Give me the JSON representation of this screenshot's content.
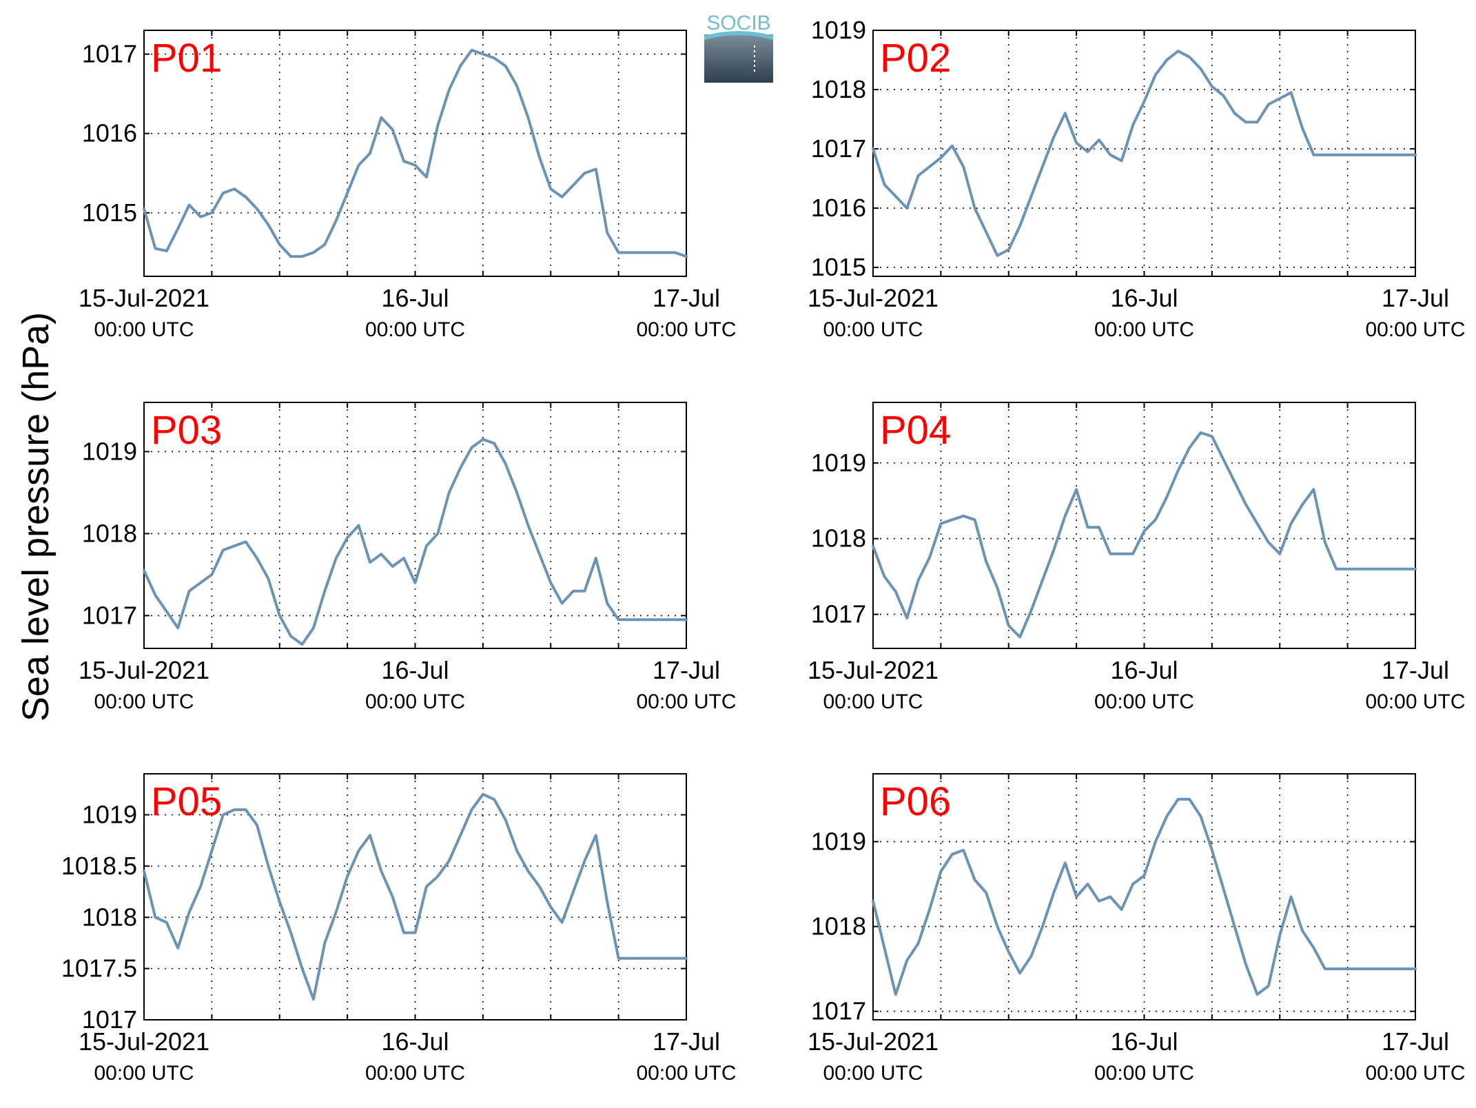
{
  "figure": {
    "ylabel": "Sea level pressure (hPa)",
    "logo_text": "SOCIB",
    "logo_icon": "socib-logo",
    "colors": {
      "series": "#6a93b6",
      "panel_label": "#ff0000",
      "logo_top": "#6cbfd2",
      "logo_mid": "#7c8c99",
      "logo_bottom": "#2f3f4e"
    }
  },
  "chart_data": [
    {
      "type": "line",
      "panel_label": "P01",
      "x_range": [
        "2021-07-15 00:00",
        "2021-07-17 00:00"
      ],
      "x_ticks": [
        {
          "main": "15-Jul-2021",
          "sub": "00:00 UTC"
        },
        {
          "main": "16-Jul",
          "sub": "00:00 UTC"
        },
        {
          "main": "17-Jul",
          "sub": "00:00 UTC"
        }
      ],
      "grid": true,
      "ylim": [
        1014.2,
        1017.3
      ],
      "yticks": [
        "1015",
        "1016",
        "1017"
      ],
      "x_hours": [
        0,
        1,
        2,
        3,
        4,
        5,
        6,
        7,
        8,
        9,
        10,
        11,
        12,
        13,
        14,
        15,
        16,
        17,
        18,
        19,
        20,
        21,
        22,
        23,
        24,
        25,
        26,
        27,
        28,
        29,
        30,
        31,
        32,
        33,
        34,
        35,
        36,
        37,
        38,
        39,
        40,
        41,
        42,
        43,
        44,
        45,
        46,
        47,
        48
      ],
      "values": [
        1015.05,
        1014.55,
        1014.52,
        1014.8,
        1015.1,
        1014.95,
        1015.0,
        1015.25,
        1015.3,
        1015.2,
        1015.05,
        1014.85,
        1014.6,
        1014.45,
        1014.45,
        1014.5,
        1014.6,
        1014.9,
        1015.25,
        1015.6,
        1015.75,
        1016.2,
        1016.05,
        1015.65,
        1015.6,
        1015.45,
        1016.1,
        1016.55,
        1016.85,
        1017.05,
        1017.0,
        1016.95,
        1016.85,
        1016.6,
        1016.2,
        1015.7,
        1015.3,
        1015.2,
        1015.35,
        1015.5,
        1015.55,
        1014.75,
        1014.5,
        1014.5,
        1014.5,
        1014.5,
        1014.5,
        1014.5,
        1014.45
      ]
    },
    {
      "type": "line",
      "panel_label": "P02",
      "x_range": [
        "2021-07-15 00:00",
        "2021-07-17 00:00"
      ],
      "x_ticks": [
        {
          "main": "15-Jul-2021",
          "sub": "00:00 UTC"
        },
        {
          "main": "16-Jul",
          "sub": "00:00 UTC"
        },
        {
          "main": "17-Jul",
          "sub": "00:00 UTC"
        }
      ],
      "grid": true,
      "ylim": [
        1014.85,
        1019.0
      ],
      "yticks": [
        "1015",
        "1016",
        "1017",
        "1018",
        "1019"
      ],
      "x_hours": [
        0,
        1,
        2,
        3,
        4,
        5,
        6,
        7,
        8,
        9,
        10,
        11,
        12,
        13,
        14,
        15,
        16,
        17,
        18,
        19,
        20,
        21,
        22,
        23,
        24,
        25,
        26,
        27,
        28,
        29,
        30,
        31,
        32,
        33,
        34,
        35,
        36,
        37,
        38,
        39,
        40,
        41,
        42,
        43,
        44,
        45,
        46,
        47,
        48
      ],
      "values": [
        1017.0,
        1016.4,
        1016.2,
        1016.0,
        1016.55,
        1016.7,
        1016.85,
        1017.05,
        1016.7,
        1016.0,
        1015.6,
        1015.2,
        1015.3,
        1015.7,
        1016.2,
        1016.7,
        1017.2,
        1017.6,
        1017.1,
        1016.95,
        1017.15,
        1016.9,
        1016.8,
        1017.4,
        1017.8,
        1018.25,
        1018.5,
        1018.65,
        1018.55,
        1018.35,
        1018.05,
        1017.9,
        1017.6,
        1017.45,
        1017.45,
        1017.75,
        1017.85,
        1017.95,
        1017.35,
        1016.9,
        1016.9,
        1016.9,
        1016.9,
        1016.9,
        1016.9,
        1016.9,
        1016.9,
        1016.9,
        1016.9
      ]
    },
    {
      "type": "line",
      "panel_label": "P03",
      "x_range": [
        "2021-07-15 00:00",
        "2021-07-17 00:00"
      ],
      "x_ticks": [
        {
          "main": "15-Jul-2021",
          "sub": "00:00 UTC"
        },
        {
          "main": "16-Jul",
          "sub": "00:00 UTC"
        },
        {
          "main": "17-Jul",
          "sub": "00:00 UTC"
        }
      ],
      "grid": true,
      "ylim": [
        1016.6,
        1019.6
      ],
      "yticks": [
        "1017",
        "1018",
        "1019"
      ],
      "x_hours": [
        0,
        1,
        2,
        3,
        4,
        5,
        6,
        7,
        8,
        9,
        10,
        11,
        12,
        13,
        14,
        15,
        16,
        17,
        18,
        19,
        20,
        21,
        22,
        23,
        24,
        25,
        26,
        27,
        28,
        29,
        30,
        31,
        32,
        33,
        34,
        35,
        36,
        37,
        38,
        39,
        40,
        41,
        42,
        43,
        44,
        45,
        46,
        47,
        48
      ],
      "values": [
        1017.55,
        1017.25,
        1017.05,
        1016.85,
        1017.3,
        1017.4,
        1017.5,
        1017.8,
        1017.85,
        1017.9,
        1017.7,
        1017.45,
        1017.0,
        1016.75,
        1016.65,
        1016.85,
        1017.3,
        1017.7,
        1017.95,
        1018.1,
        1017.65,
        1017.75,
        1017.6,
        1017.7,
        1017.4,
        1017.85,
        1018.0,
        1018.5,
        1018.8,
        1019.05,
        1019.15,
        1019.1,
        1018.85,
        1018.5,
        1018.1,
        1017.75,
        1017.4,
        1017.15,
        1017.3,
        1017.3,
        1017.7,
        1017.15,
        1016.95,
        1016.95,
        1016.95,
        1016.95,
        1016.95,
        1016.95,
        1016.95
      ]
    },
    {
      "type": "line",
      "panel_label": "P04",
      "x_range": [
        "2021-07-15 00:00",
        "2021-07-17 00:00"
      ],
      "x_ticks": [
        {
          "main": "15-Jul-2021",
          "sub": "00:00 UTC"
        },
        {
          "main": "16-Jul",
          "sub": "00:00 UTC"
        },
        {
          "main": "17-Jul",
          "sub": "00:00 UTC"
        }
      ],
      "grid": true,
      "ylim": [
        1016.55,
        1019.8
      ],
      "yticks": [
        "1017",
        "1018",
        "1019"
      ],
      "x_hours": [
        0,
        1,
        2,
        3,
        4,
        5,
        6,
        7,
        8,
        9,
        10,
        11,
        12,
        13,
        14,
        15,
        16,
        17,
        18,
        19,
        20,
        21,
        22,
        23,
        24,
        25,
        26,
        27,
        28,
        29,
        30,
        31,
        32,
        33,
        34,
        35,
        36,
        37,
        38,
        39,
        40,
        41,
        42,
        43,
        44,
        45,
        46,
        47,
        48
      ],
      "values": [
        1017.9,
        1017.5,
        1017.3,
        1016.95,
        1017.45,
        1017.75,
        1018.2,
        1018.25,
        1018.3,
        1018.25,
        1017.7,
        1017.35,
        1016.85,
        1016.7,
        1017.05,
        1017.45,
        1017.85,
        1018.3,
        1018.65,
        1018.15,
        1018.15,
        1017.8,
        1017.8,
        1017.8,
        1018.1,
        1018.25,
        1018.55,
        1018.9,
        1019.2,
        1019.4,
        1019.35,
        1019.05,
        1018.75,
        1018.45,
        1018.2,
        1017.95,
        1017.8,
        1018.2,
        1018.45,
        1018.65,
        1017.95,
        1017.6,
        1017.6,
        1017.6,
        1017.6,
        1017.6,
        1017.6,
        1017.6,
        1017.6
      ]
    },
    {
      "type": "line",
      "panel_label": "P05",
      "x_range": [
        "2021-07-15 00:00",
        "2021-07-17 00:00"
      ],
      "x_ticks": [
        {
          "main": "15-Jul-2021",
          "sub": "00:00 UTC"
        },
        {
          "main": "16-Jul",
          "sub": "00:00 UTC"
        },
        {
          "main": "17-Jul",
          "sub": "00:00 UTC"
        }
      ],
      "grid": true,
      "ylim": [
        1017.0,
        1019.4
      ],
      "yticks": [
        "1017",
        "1017.5",
        "1018",
        "1018.5",
        "1019"
      ],
      "x_hours": [
        0,
        1,
        2,
        3,
        4,
        5,
        6,
        7,
        8,
        9,
        10,
        11,
        12,
        13,
        14,
        15,
        16,
        17,
        18,
        19,
        20,
        21,
        22,
        23,
        24,
        25,
        26,
        27,
        28,
        29,
        30,
        31,
        32,
        33,
        34,
        35,
        36,
        37,
        38,
        39,
        40,
        41,
        42,
        43,
        44,
        45,
        46,
        47,
        48
      ],
      "values": [
        1018.45,
        1018.0,
        1017.95,
        1017.7,
        1018.05,
        1018.3,
        1018.65,
        1019.0,
        1019.05,
        1019.05,
        1018.9,
        1018.5,
        1018.15,
        1017.85,
        1017.5,
        1017.2,
        1017.75,
        1018.05,
        1018.4,
        1018.65,
        1018.8,
        1018.45,
        1018.2,
        1017.85,
        1017.85,
        1018.3,
        1018.4,
        1018.55,
        1018.8,
        1019.05,
        1019.2,
        1019.15,
        1018.95,
        1018.65,
        1018.45,
        1018.3,
        1018.1,
        1017.95,
        1018.25,
        1018.55,
        1018.8,
        1018.15,
        1017.6,
        1017.6,
        1017.6,
        1017.6,
        1017.6,
        1017.6,
        1017.6
      ]
    },
    {
      "type": "line",
      "panel_label": "P06",
      "x_range": [
        "2021-07-15 00:00",
        "2021-07-17 00:00"
      ],
      "x_ticks": [
        {
          "main": "15-Jul-2021",
          "sub": "00:00 UTC"
        },
        {
          "main": "16-Jul",
          "sub": "00:00 UTC"
        },
        {
          "main": "17-Jul",
          "sub": "00:00 UTC"
        }
      ],
      "grid": true,
      "ylim": [
        1016.9,
        1019.8
      ],
      "yticks": [
        "1017",
        "1018",
        "1019"
      ],
      "x_hours": [
        0,
        1,
        2,
        3,
        4,
        5,
        6,
        7,
        8,
        9,
        10,
        11,
        12,
        13,
        14,
        15,
        16,
        17,
        18,
        19,
        20,
        21,
        22,
        23,
        24,
        25,
        26,
        27,
        28,
        29,
        30,
        31,
        32,
        33,
        34,
        35,
        36,
        37,
        38,
        39,
        40,
        41,
        42,
        43,
        44,
        45,
        46,
        47,
        48
      ],
      "values": [
        1018.3,
        1017.75,
        1017.2,
        1017.6,
        1017.8,
        1018.2,
        1018.65,
        1018.85,
        1018.9,
        1018.55,
        1018.4,
        1018.0,
        1017.7,
        1017.45,
        1017.65,
        1018.0,
        1018.4,
        1018.75,
        1018.35,
        1018.5,
        1018.3,
        1018.35,
        1018.2,
        1018.5,
        1018.6,
        1019.0,
        1019.3,
        1019.5,
        1019.5,
        1019.3,
        1018.9,
        1018.45,
        1018.0,
        1017.55,
        1017.2,
        1017.3,
        1017.9,
        1018.35,
        1017.95,
        1017.75,
        1017.5,
        1017.5,
        1017.5,
        1017.5,
        1017.5,
        1017.5,
        1017.5,
        1017.5,
        1017.5
      ]
    }
  ]
}
